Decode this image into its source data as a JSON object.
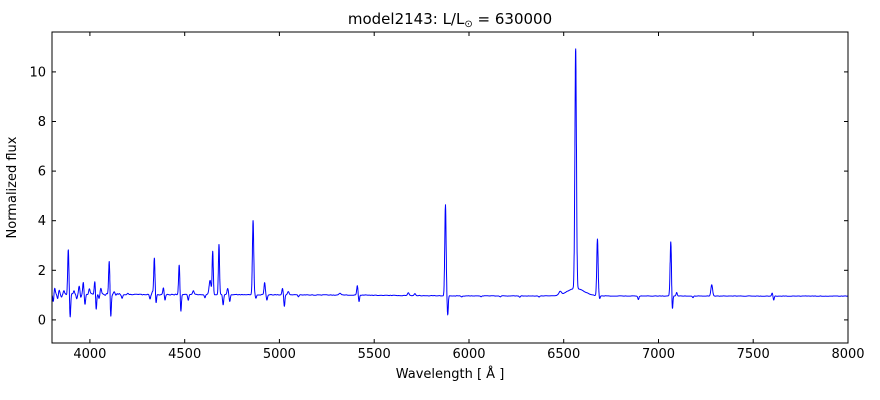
{
  "figure": {
    "title_prefix": "model2143: L/L",
    "title_sub": "⊙",
    "title_suffix": " = 630000",
    "background": "#ffffff",
    "axis_color": "#000000"
  },
  "chart_data": {
    "type": "line",
    "title": "model2143: L/L⊙ = 630000",
    "xlabel": "Wavelength [ Å ]",
    "ylabel": "Normalized flux",
    "xlim": [
      3800,
      8000
    ],
    "ylim": [
      -0.93,
      11.61
    ],
    "xticks": [
      4000,
      4500,
      5000,
      5500,
      6000,
      6500,
      7000,
      7500,
      8000
    ],
    "yticks": [
      0,
      2,
      4,
      6,
      8,
      10
    ],
    "grid": false,
    "legend": false,
    "line_color": "#0000ff",
    "continuum": [
      [
        3800,
        1.03
      ],
      [
        4800,
        1.02
      ],
      [
        5400,
        1.0
      ],
      [
        5900,
        0.97
      ],
      [
        8000,
        0.96
      ]
    ],
    "noise_segments": [
      [
        3800,
        4200,
        0.04
      ],
      [
        4200,
        4460,
        0.02
      ],
      [
        4460,
        5950,
        0.012
      ],
      [
        5950,
        8000,
        0.008
      ]
    ],
    "emission_lines": [
      {
        "center": 3814,
        "peak": 1.28,
        "sigma": 3.5
      },
      {
        "center": 3838,
        "peak": 1.2,
        "sigma": 3.5
      },
      {
        "center": 3862,
        "peak": 1.15,
        "sigma": 3.5
      },
      {
        "center": 3886,
        "peak": 2.8,
        "sigma": 3.2
      },
      {
        "center": 3916,
        "peak": 1.2,
        "sigma": 3.5
      },
      {
        "center": 3944,
        "peak": 1.35,
        "sigma": 3.5
      },
      {
        "center": 3965,
        "peak": 1.55,
        "sigma": 3.2
      },
      {
        "center": 3997,
        "peak": 1.25,
        "sigma": 3.5
      },
      {
        "center": 4026,
        "peak": 1.6,
        "sigma": 3.2
      },
      {
        "center": 4058,
        "peak": 1.3,
        "sigma": 3.5
      },
      {
        "center": 4102,
        "peak": 2.35,
        "sigma": 3.2
      },
      {
        "center": 4128,
        "peak": 1.12,
        "sigma": 4
      },
      {
        "center": 4155,
        "peak": 1.1,
        "sigma": 4
      },
      {
        "center": 4200,
        "peak": 1.08,
        "sigma": 5
      },
      {
        "center": 4330,
        "peak": 1.15,
        "sigma": 3
      },
      {
        "center": 4340,
        "peak": 2.5,
        "sigma": 3.2
      },
      {
        "center": 4388,
        "peak": 1.3,
        "sigma": 3.2
      },
      {
        "center": 4471,
        "peak": 2.22,
        "sigma": 3.2
      },
      {
        "center": 4546,
        "peak": 1.18,
        "sigma": 4
      },
      {
        "center": 4634,
        "peak": 1.6,
        "sigma": 5
      },
      {
        "center": 4648,
        "peak": 2.75,
        "sigma": 3
      },
      {
        "center": 4681,
        "peak": 3.05,
        "sigma": 3
      },
      {
        "center": 4727,
        "peak": 1.28,
        "sigma": 3.5
      },
      {
        "center": 4861,
        "peak": 4.0,
        "sigma": 3.5
      },
      {
        "center": 4922,
        "peak": 1.5,
        "sigma": 3.2
      },
      {
        "center": 5016,
        "peak": 1.28,
        "sigma": 3.2
      },
      {
        "center": 5047,
        "peak": 1.15,
        "sigma": 4
      },
      {
        "center": 5320,
        "peak": 1.08,
        "sigma": 5
      },
      {
        "center": 5411,
        "peak": 1.37,
        "sigma": 3.2
      },
      {
        "center": 5680,
        "peak": 1.1,
        "sigma": 4
      },
      {
        "center": 5715,
        "peak": 1.07,
        "sigma": 4
      },
      {
        "center": 5876,
        "peak": 4.64,
        "sigma": 3.5
      },
      {
        "center": 6481,
        "peak": 1.1,
        "sigma": 6
      },
      {
        "center": 6563,
        "peak": 10.62,
        "sigma": 4
      },
      {
        "center": 6563,
        "peak": 1.27,
        "sigma": 45
      },
      {
        "center": 6678,
        "peak": 3.25,
        "sigma": 3.5
      },
      {
        "center": 7065,
        "peak": 3.16,
        "sigma": 3.5
      },
      {
        "center": 7096,
        "peak": 1.1,
        "sigma": 3
      },
      {
        "center": 7281,
        "peak": 1.41,
        "sigma": 4.5
      },
      {
        "center": 7600,
        "peak": 1.08,
        "sigma": 3
      }
    ],
    "absorption_lines": [
      {
        "center": 3807,
        "bottom": 0.71,
        "sigma": 3
      },
      {
        "center": 3830,
        "bottom": 0.85,
        "sigma": 3
      },
      {
        "center": 3850,
        "bottom": 0.9,
        "sigma": 3
      },
      {
        "center": 3896,
        "bottom": 0.1,
        "sigma": 2.8
      },
      {
        "center": 3930,
        "bottom": 0.85,
        "sigma": 3
      },
      {
        "center": 3952,
        "bottom": 0.9,
        "sigma": 3
      },
      {
        "center": 3974,
        "bottom": 0.65,
        "sigma": 3
      },
      {
        "center": 4033,
        "bottom": 0.37,
        "sigma": 2.8
      },
      {
        "center": 4048,
        "bottom": 0.85,
        "sigma": 3
      },
      {
        "center": 4110,
        "bottom": 0.11,
        "sigma": 2.8
      },
      {
        "center": 4170,
        "bottom": 0.9,
        "sigma": 3
      },
      {
        "center": 4317,
        "bottom": 0.85,
        "sigma": 3
      },
      {
        "center": 4349,
        "bottom": 0.67,
        "sigma": 2.8
      },
      {
        "center": 4396,
        "bottom": 0.8,
        "sigma": 3
      },
      {
        "center": 4480,
        "bottom": 0.33,
        "sigma": 2.8
      },
      {
        "center": 4519,
        "bottom": 0.8,
        "sigma": 3
      },
      {
        "center": 4607,
        "bottom": 0.9,
        "sigma": 3
      },
      {
        "center": 4703,
        "bottom": 0.6,
        "sigma": 3
      },
      {
        "center": 4738,
        "bottom": 0.74,
        "sigma": 3
      },
      {
        "center": 4876,
        "bottom": 0.87,
        "sigma": 3
      },
      {
        "center": 4934,
        "bottom": 0.8,
        "sigma": 3
      },
      {
        "center": 5026,
        "bottom": 0.55,
        "sigma": 2.8
      },
      {
        "center": 5100,
        "bottom": 0.93,
        "sigma": 3
      },
      {
        "center": 5420,
        "bottom": 0.74,
        "sigma": 2.8
      },
      {
        "center": 5888,
        "bottom": 0.2,
        "sigma": 2.8
      },
      {
        "center": 5962,
        "bottom": 0.93,
        "sigma": 3
      },
      {
        "center": 6064,
        "bottom": 0.93,
        "sigma": 3
      },
      {
        "center": 6166,
        "bottom": 0.93,
        "sigma": 3
      },
      {
        "center": 6268,
        "bottom": 0.92,
        "sigma": 3
      },
      {
        "center": 6370,
        "bottom": 0.93,
        "sigma": 3
      },
      {
        "center": 6690,
        "bottom": 0.85,
        "sigma": 2.8
      },
      {
        "center": 6894,
        "bottom": 0.83,
        "sigma": 3
      },
      {
        "center": 7073,
        "bottom": 0.35,
        "sigma": 2.8
      },
      {
        "center": 7182,
        "bottom": 0.9,
        "sigma": 3
      },
      {
        "center": 7608,
        "bottom": 0.8,
        "sigma": 2.8
      }
    ]
  }
}
